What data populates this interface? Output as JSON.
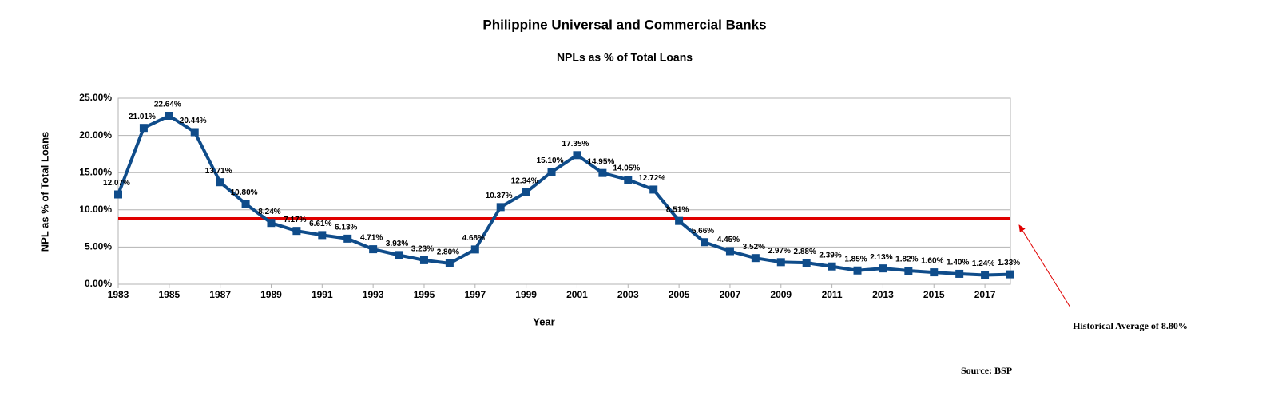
{
  "chart_data": {
    "type": "line",
    "title": "Philippine Universal and Commercial Banks",
    "subtitle": "NPLs as % of Total Loans",
    "xlabel": "Year",
    "ylabel": "NPL as % of Total Loans",
    "x": [
      1983,
      1984,
      1985,
      1986,
      1987,
      1988,
      1989,
      1990,
      1991,
      1992,
      1993,
      1994,
      1995,
      1996,
      1997,
      1998,
      1999,
      2000,
      2001,
      2002,
      2003,
      2004,
      2005,
      2006,
      2007,
      2008,
      2009,
      2010,
      2011,
      2012,
      2013,
      2014,
      2015,
      2016,
      2017,
      2018
    ],
    "values": [
      12.07,
      21.01,
      22.64,
      20.44,
      13.71,
      10.8,
      8.24,
      7.17,
      6.61,
      6.13,
      4.71,
      3.93,
      3.23,
      2.8,
      4.68,
      10.37,
      12.34,
      15.1,
      17.35,
      14.95,
      14.05,
      12.72,
      8.51,
      5.66,
      4.45,
      3.52,
      2.97,
      2.88,
      2.39,
      1.85,
      2.13,
      1.82,
      1.6,
      1.4,
      1.24,
      1.33
    ],
    "value_labels": [
      "12.07%",
      "21.01%",
      "22.64%",
      "20.44%",
      "13.71%",
      "10.80%",
      "8.24%",
      "7.17%",
      "6.61%",
      "6.13%",
      "4.71%",
      "3.93%",
      "3.23%",
      "2.80%",
      "4.68%",
      "10.37%",
      "12.34%",
      "15.10%",
      "17.35%",
      "14.95%",
      "14.05%",
      "12.72%",
      "8.51%",
      "5.66%",
      "4.45%",
      "3.52%",
      "2.97%",
      "2.88%",
      "2.39%",
      "1.85%",
      "2.13%",
      "1.82%",
      "1.60%",
      "1.40%",
      "1.24%",
      "1.33%"
    ],
    "color": "#0f4c8a",
    "xlim": [
      1983,
      2018
    ],
    "xticks": [
      1983,
      1985,
      1987,
      1989,
      1991,
      1993,
      1995,
      1997,
      1999,
      2001,
      2003,
      2005,
      2007,
      2009,
      2011,
      2013,
      2015,
      2017
    ],
    "ylim": [
      0,
      25
    ],
    "yticks": [
      {
        "value": 0,
        "label": "0.00%"
      },
      {
        "value": 5,
        "label": "5.00%"
      },
      {
        "value": 10,
        "label": "10.00%"
      },
      {
        "value": 15,
        "label": "15.00%"
      },
      {
        "value": 20,
        "label": "20.00%"
      },
      {
        "value": 25,
        "label": "25.00%"
      }
    ],
    "grid": true,
    "reference_line": {
      "value": 8.8,
      "label": "Historical Average of 8.80%",
      "color": "#e00000"
    },
    "source": "Source: BSP"
  }
}
